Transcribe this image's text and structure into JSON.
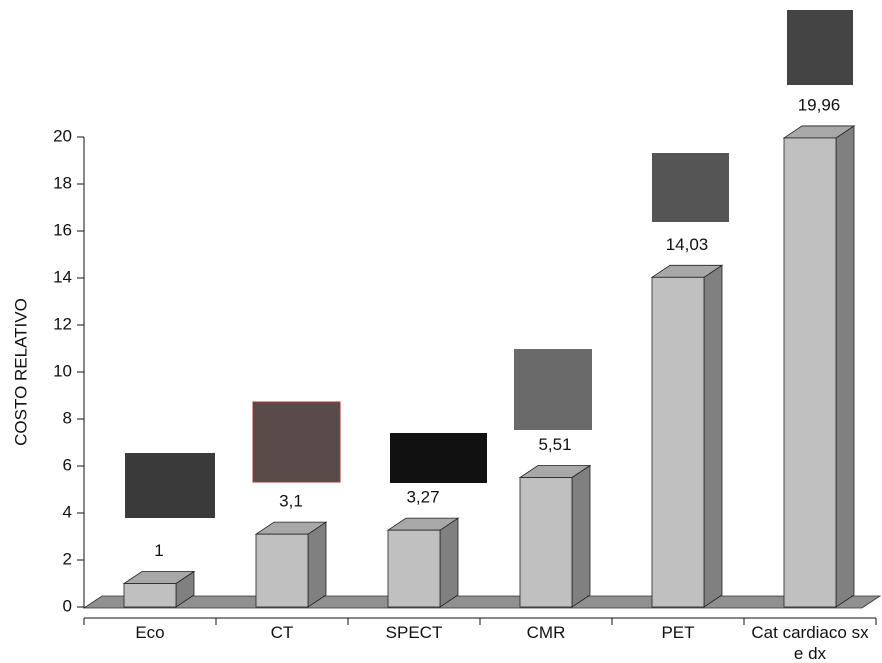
{
  "chart_data": {
    "type": "bar",
    "y_label": "COSTO RELATIVO",
    "categories": [
      "Eco",
      "CT",
      "SPECT",
      "CMR",
      "PET",
      "Cat cardiaco sx e dx"
    ],
    "values": [
      1,
      3.1,
      3.27,
      5.51,
      14.03,
      19.96
    ],
    "value_labels": [
      "1",
      "3,1",
      "3,27",
      "5,51",
      "14,03",
      "19,96"
    ],
    "color": "#c0c0c0",
    "ylim": [
      0,
      20
    ],
    "yticks": [
      0,
      2,
      4,
      6,
      8,
      10,
      12,
      14,
      16,
      18,
      20
    ]
  }
}
